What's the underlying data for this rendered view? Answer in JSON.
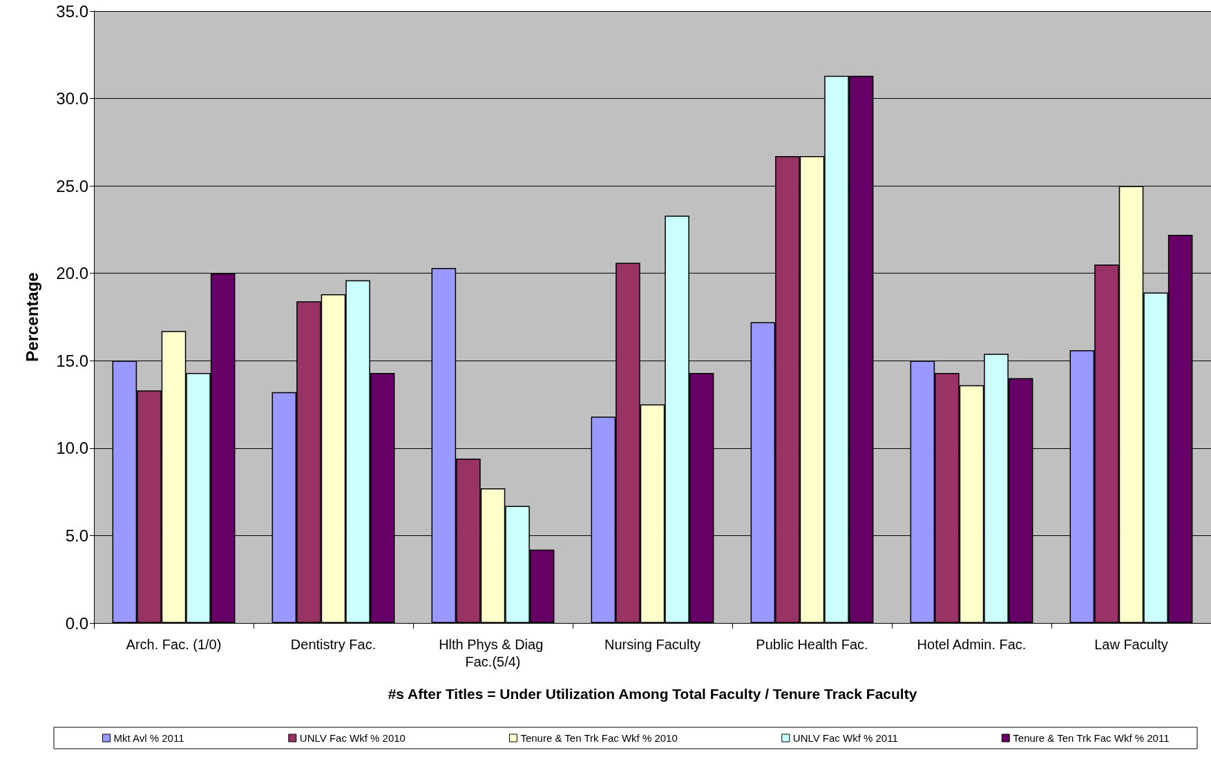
{
  "chart_data": {
    "type": "bar",
    "ylabel": "Percentage",
    "xlabel": "#s After Titles = Under Utilization Among Total Faculty / Tenure Track Faculty",
    "categories": [
      "Arch. Fac. (1/0)",
      "Dentistry Fac.",
      "Hlth Phys & Diag Fac.(5/4)",
      "Nursing Faculty",
      "Public Health Fac.",
      "Hotel Admin. Fac.",
      "Law Faculty"
    ],
    "series": [
      {
        "name": "Mkt Avl % 2011",
        "color": "#9999ff",
        "values": [
          15.0,
          13.2,
          20.3,
          11.8,
          17.2,
          15.0,
          15.6
        ]
      },
      {
        "name": "UNLV Fac Wkf % 2010",
        "color": "#993366",
        "values": [
          13.3,
          18.4,
          9.4,
          20.6,
          26.7,
          14.3,
          20.5
        ]
      },
      {
        "name": "Tenure & Ten Trk Fac Wkf % 2010",
        "color": "#ffffcc",
        "values": [
          16.7,
          18.8,
          7.7,
          12.5,
          26.7,
          13.6,
          25.0
        ]
      },
      {
        "name": "UNLV Fac Wkf % 2011",
        "color": "#ccffff",
        "values": [
          14.3,
          19.6,
          6.7,
          23.3,
          31.3,
          15.4,
          18.9
        ]
      },
      {
        "name": "Tenure & Ten Trk Fac Wkf % 2011",
        "color": "#660066",
        "values": [
          20.0,
          14.3,
          4.2,
          14.3,
          31.3,
          14.0,
          22.2
        ]
      }
    ],
    "ylim": [
      0,
      35
    ],
    "yticks": [
      {
        "value": 0,
        "label": "0.0"
      },
      {
        "value": 5,
        "label": "5.0"
      },
      {
        "value": 10,
        "label": "10.0"
      },
      {
        "value": 15,
        "label": "15.0"
      },
      {
        "value": 20,
        "label": "20.0"
      },
      {
        "value": 25,
        "label": "25.0"
      },
      {
        "value": 30,
        "label": "30.0"
      },
      {
        "value": 35,
        "label": "35.0"
      }
    ],
    "grid": "y",
    "legend": "bottom"
  }
}
